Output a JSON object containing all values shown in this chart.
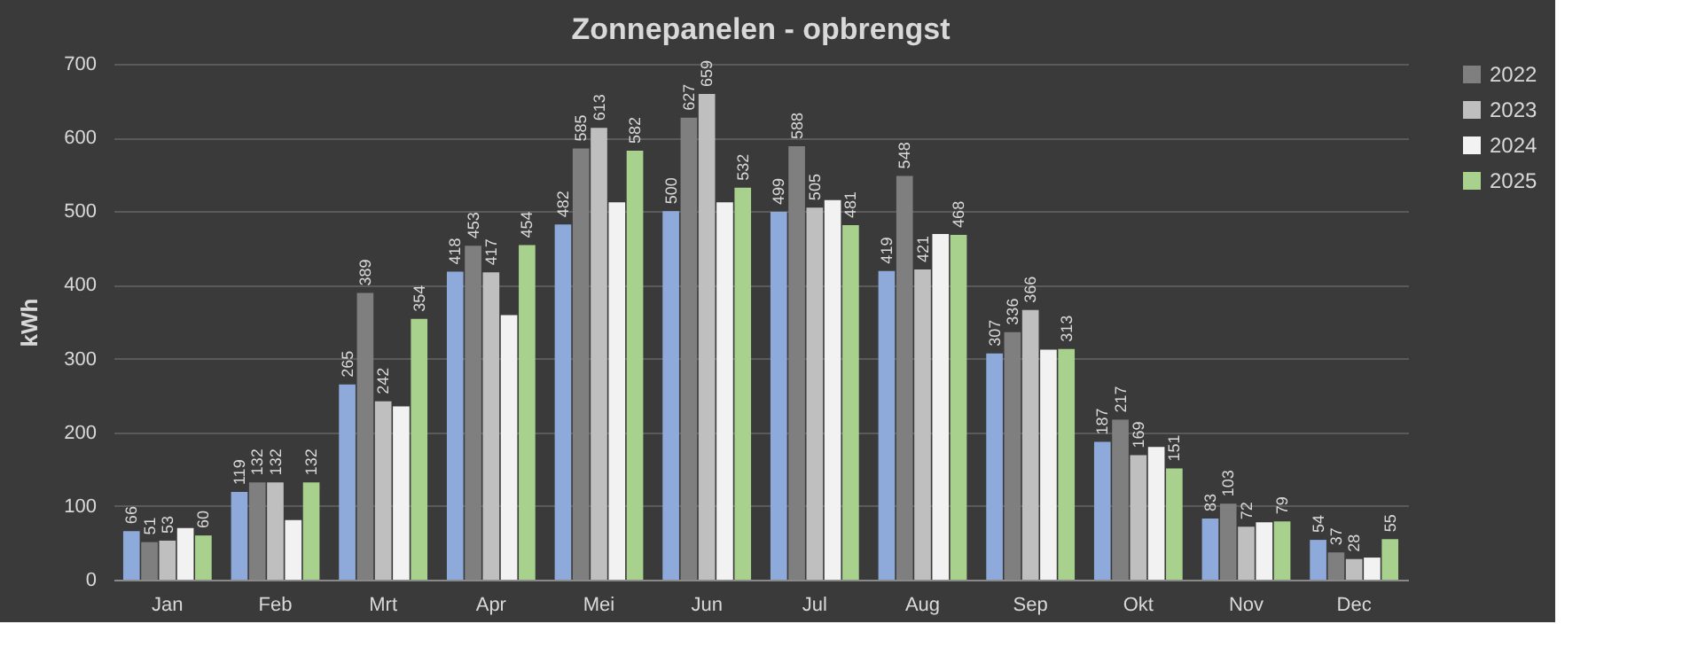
{
  "chart_data": {
    "type": "bar",
    "title": "Zonnepanelen  - opbrengst",
    "ylabel": "kWh",
    "categories": [
      "Jan",
      "Feb",
      "Mrt",
      "Apr",
      "Mei",
      "Jun",
      "Jul",
      "Aug",
      "Sep",
      "Okt",
      "Nov",
      "Dec"
    ],
    "series": [
      {
        "color": "#8eaadb",
        "values": [
          66,
          119,
          265,
          418,
          482,
          500,
          499,
          419,
          307,
          187,
          83,
          54
        ],
        "value_labels": [
          "66",
          "119",
          "265",
          "418",
          "482",
          "500",
          "499",
          "419",
          "307",
          "187",
          "83",
          "54"
        ]
      },
      {
        "name": "2022",
        "color": "#7f7f7f",
        "values": [
          51,
          132,
          389,
          453,
          585,
          627,
          588,
          548,
          336,
          217,
          103,
          37
        ],
        "value_labels": [
          "51",
          "132",
          "389",
          "453",
          "585",
          "627",
          "588",
          "548",
          "336",
          "217",
          "103",
          "37"
        ]
      },
      {
        "name": "2023",
        "color": "#bfbfbf",
        "values": [
          53,
          132,
          242,
          417,
          613,
          659,
          505,
          421,
          366,
          169,
          72,
          28
        ],
        "value_labels": [
          "53",
          "132",
          "242",
          "417",
          "613",
          "659",
          "505",
          "421",
          "366",
          "169",
          "72",
          "28"
        ]
      },
      {
        "name": "2024",
        "color": "#f2f2f2",
        "values": [
          70,
          81,
          235,
          359,
          512,
          512,
          515,
          469,
          312,
          180,
          78,
          30
        ],
        "value_labels": [
          null,
          null,
          null,
          null,
          null,
          null,
          null,
          null,
          null,
          null,
          null,
          null
        ]
      },
      {
        "name": "2025",
        "color": "#a9d18e",
        "values": [
          60,
          132,
          354,
          454,
          582,
          532,
          481,
          468,
          313,
          151,
          79,
          55
        ],
        "value_labels": [
          "60",
          "132",
          "354",
          "454",
          "582",
          "532",
          "481",
          "468",
          "313",
          "151",
          "79",
          "55"
        ]
      }
    ],
    "ylim": [
      0,
      700
    ],
    "yticks": [
      0,
      100,
      200,
      300,
      400,
      500,
      600,
      700
    ],
    "grid": "y",
    "legend": "right"
  }
}
